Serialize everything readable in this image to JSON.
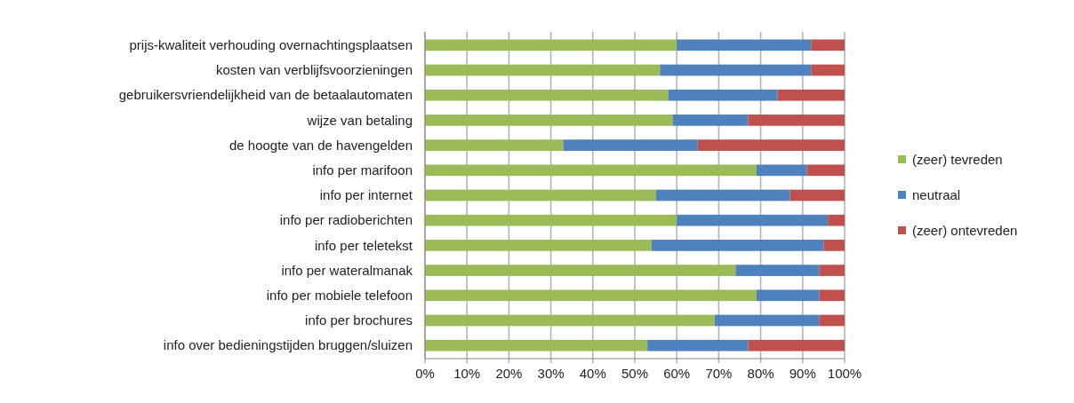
{
  "chart_data": {
    "type": "bar",
    "orientation": "horizontal",
    "stacked": true,
    "categories": [
      "prijs-kwaliteit verhouding overnachtingsplaatsen",
      "kosten van verblijfsvoorzieningen",
      "gebruikersvriendelijkheid van de betaalautomaten",
      "wijze van betaling",
      "de hoogte van de havengelden",
      "info per marifoon",
      "info per internet",
      "info per radioberichten",
      "info per teletekst",
      "info per wateralmanak",
      "info per mobiele telefoon",
      "info per brochures",
      "info over bedieningstijden bruggen/sluizen"
    ],
    "series": [
      {
        "name": "(zeer) tevreden",
        "color": "#9bbb59",
        "values": [
          60,
          56,
          58,
          59,
          33,
          79,
          55,
          60,
          54,
          74,
          79,
          69,
          53
        ]
      },
      {
        "name": "neutraal",
        "color": "#4f81bd",
        "values": [
          32,
          36,
          26,
          18,
          32,
          12,
          32,
          36,
          41,
          20,
          15,
          25,
          24
        ]
      },
      {
        "name": "(zeer) ontevreden",
        "color": "#c0504d",
        "values": [
          8,
          8,
          16,
          23,
          35,
          9,
          13,
          4,
          5,
          6,
          6,
          6,
          23
        ]
      }
    ],
    "xlim": [
      0,
      100
    ],
    "xticks": [
      {
        "value": 0,
        "label": "0%"
      },
      {
        "value": 10,
        "label": "10%"
      },
      {
        "value": 20,
        "label": "20%"
      },
      {
        "value": 30,
        "label": "30%"
      },
      {
        "value": 40,
        "label": "40%"
      },
      {
        "value": 50,
        "label": "50%"
      },
      {
        "value": 60,
        "label": "60%"
      },
      {
        "value": 70,
        "label": "70%"
      },
      {
        "value": 80,
        "label": "80%"
      },
      {
        "value": 90,
        "label": "90%"
      },
      {
        "value": 100,
        "label": "100%"
      }
    ],
    "grid": "x",
    "legend": "right"
  }
}
